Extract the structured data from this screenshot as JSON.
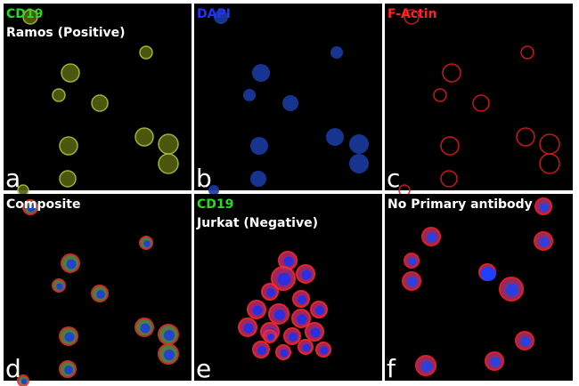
{
  "panels": [
    {
      "letter": "a",
      "labels": [
        {
          "text": "CD19",
          "color": "#22dd22"
        },
        {
          "text": "Ramos (Positive)",
          "color": "#ffffff"
        }
      ]
    },
    {
      "letter": "b",
      "labels": [
        {
          "text": "DAPI",
          "color": "#2233ff"
        }
      ]
    },
    {
      "letter": "c",
      "labels": [
        {
          "text": "F-Actin",
          "color": "#ff2222"
        }
      ]
    },
    {
      "letter": "d",
      "labels": [
        {
          "text": "Composite",
          "color": "#ffffff"
        }
      ]
    },
    {
      "letter": "e",
      "labels": [
        {
          "text": "CD19",
          "color": "#22dd22"
        },
        {
          "text": "Jurkat (Negative)",
          "color": "#ffffff"
        }
      ]
    },
    {
      "letter": "f",
      "labels": [
        {
          "text": "No Primary antibody",
          "color": "#ffffff"
        }
      ]
    }
  ]
}
